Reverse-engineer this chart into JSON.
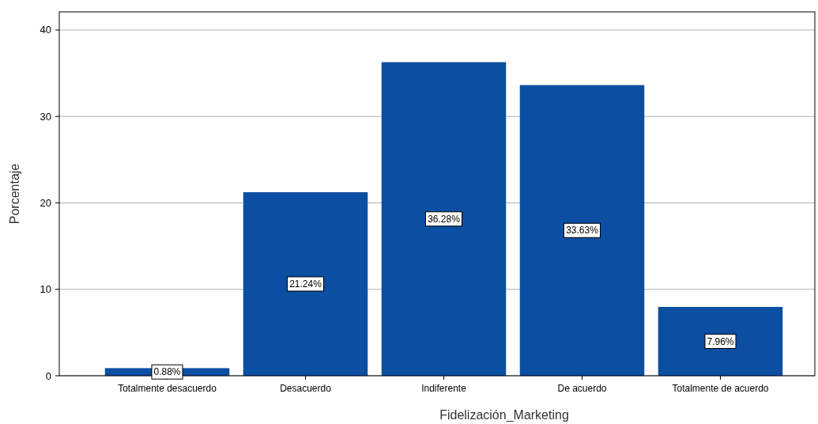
{
  "chart_data": {
    "type": "bar",
    "xlabel": "Fidelización_Marketing",
    "ylabel": "Porcentaje",
    "categories": [
      "Totalmente desacuerdo",
      "Desacuerdo",
      "Indiferente",
      "De acuerdo",
      "Totalmente de acuerdo"
    ],
    "values": [
      0.88,
      21.24,
      36.28,
      33.63,
      7.96
    ],
    "value_labels": [
      "0.88%",
      "21.24%",
      "36.28%",
      "33.63%",
      "7.96%"
    ],
    "color": "#0b4ea2",
    "ylim": [
      0,
      42.1
    ],
    "yticks": [
      0,
      10,
      20,
      30,
      40
    ],
    "grid": "y"
  }
}
